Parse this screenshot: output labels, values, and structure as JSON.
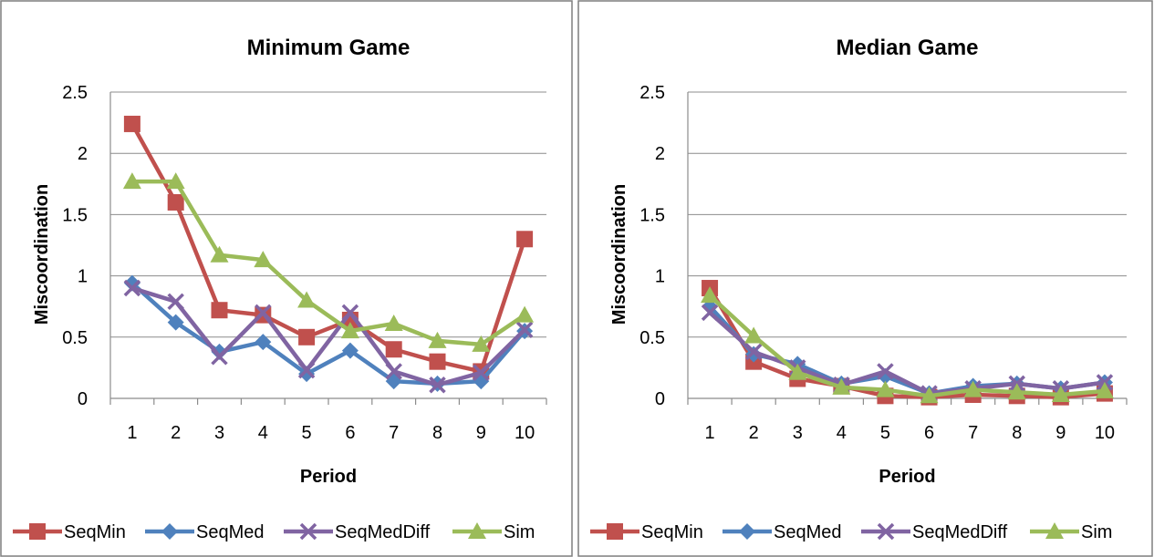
{
  "colors": {
    "SeqMin": "#c0504d",
    "SeqMed": "#4f81bd",
    "SeqMedDiff": "#8064a2",
    "Sim": "#9bbb59",
    "grid": "#8c8c8c",
    "frame": "#7f7f7f"
  },
  "chart_data": [
    {
      "type": "line",
      "title": "Minimum Game",
      "xlabel": "Period",
      "ylabel": "Miscoordination",
      "categories": [
        "1",
        "2",
        "3",
        "4",
        "5",
        "6",
        "7",
        "8",
        "9",
        "10"
      ],
      "ylim": [
        0,
        2.5
      ],
      "yticks": [
        "0",
        "0.5",
        "1",
        "1.5",
        "2",
        "2.5"
      ],
      "grid": true,
      "legend_position": "bottom",
      "series": [
        {
          "name": "SeqMin",
          "marker": "square",
          "values": [
            2.24,
            1.6,
            0.72,
            0.68,
            0.5,
            0.64,
            0.4,
            0.3,
            0.22,
            1.3
          ]
        },
        {
          "name": "SeqMed",
          "marker": "diamond",
          "values": [
            0.94,
            0.62,
            0.38,
            0.46,
            0.2,
            0.39,
            0.14,
            0.12,
            0.14,
            0.55
          ]
        },
        {
          "name": "SeqMedDiff",
          "marker": "x",
          "values": [
            0.9,
            0.79,
            0.34,
            0.7,
            0.23,
            0.7,
            0.22,
            0.11,
            0.21,
            0.56
          ]
        },
        {
          "name": "Sim",
          "marker": "triangle",
          "values": [
            1.77,
            1.77,
            1.17,
            1.13,
            0.8,
            0.55,
            0.61,
            0.47,
            0.44,
            0.68
          ]
        }
      ]
    },
    {
      "type": "line",
      "title": "Median Game",
      "xlabel": "Period",
      "ylabel": "Miscoordination",
      "categories": [
        "1",
        "2",
        "3",
        "4",
        "5",
        "6",
        "7",
        "8",
        "9",
        "10"
      ],
      "ylim": [
        0,
        2.5
      ],
      "yticks": [
        "0",
        "0.5",
        "1",
        "1.5",
        "2",
        "2.5"
      ],
      "grid": true,
      "legend_position": "bottom",
      "series": [
        {
          "name": "SeqMin",
          "marker": "square",
          "values": [
            0.9,
            0.3,
            0.16,
            0.1,
            0.02,
            0.01,
            0.03,
            0.02,
            0.01,
            0.04
          ]
        },
        {
          "name": "SeqMed",
          "marker": "diamond",
          "values": [
            0.75,
            0.36,
            0.28,
            0.12,
            0.18,
            0.04,
            0.1,
            0.12,
            0.08,
            0.13
          ]
        },
        {
          "name": "SeqMedDiff",
          "marker": "x",
          "values": [
            0.7,
            0.38,
            0.25,
            0.11,
            0.22,
            0.04,
            0.08,
            0.12,
            0.08,
            0.13
          ]
        },
        {
          "name": "Sim",
          "marker": "triangle",
          "values": [
            0.84,
            0.51,
            0.21,
            0.09,
            0.07,
            0.02,
            0.07,
            0.05,
            0.03,
            0.06
          ]
        }
      ]
    }
  ]
}
